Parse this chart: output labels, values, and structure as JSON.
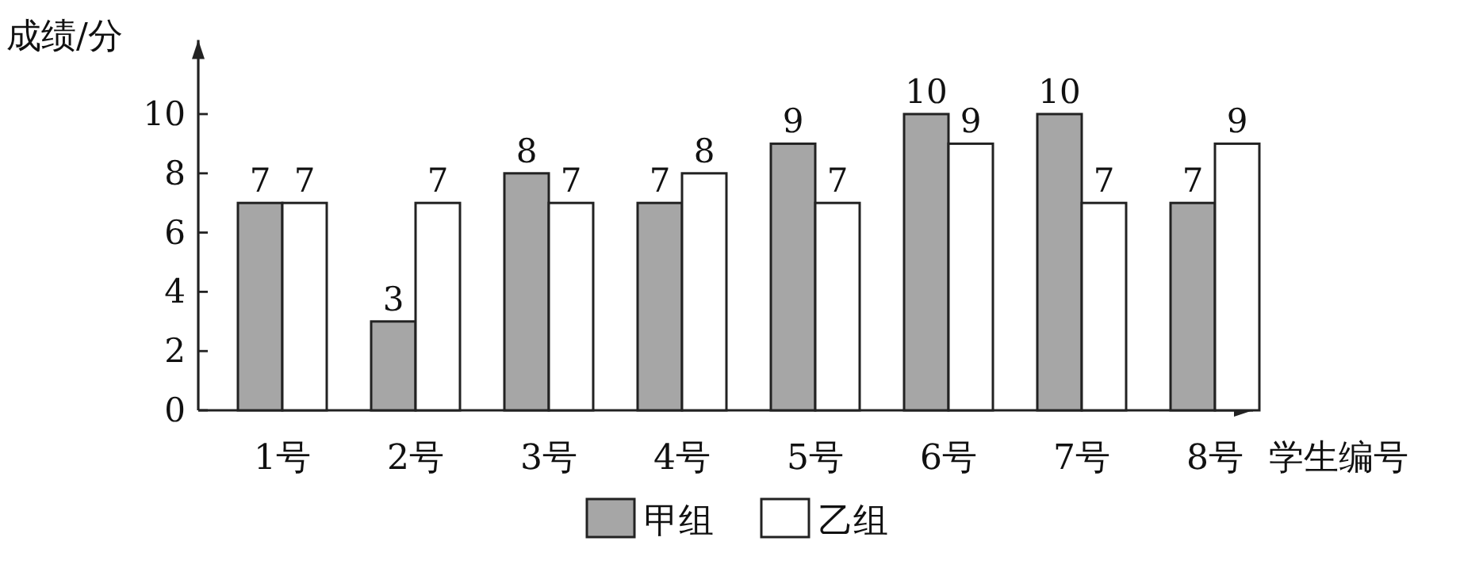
{
  "chart_data": {
    "type": "bar",
    "ylabel": "成绩/分",
    "xlabel": "学生编号",
    "categories": [
      "1号",
      "2号",
      "3号",
      "4号",
      "5号",
      "6号",
      "7号",
      "8号"
    ],
    "series": [
      {
        "name": "甲组",
        "color": "#a6a6a6",
        "values": [
          7,
          3,
          8,
          7,
          9,
          10,
          10,
          7
        ]
      },
      {
        "name": "乙组",
        "color": "#ffffff",
        "values": [
          7,
          7,
          7,
          8,
          7,
          9,
          7,
          9
        ]
      }
    ],
    "ylim": [
      0,
      12.5
    ],
    "yticks": [
      0,
      2,
      4,
      6,
      8,
      10
    ],
    "data_labels": true,
    "legend": "bottom"
  }
}
